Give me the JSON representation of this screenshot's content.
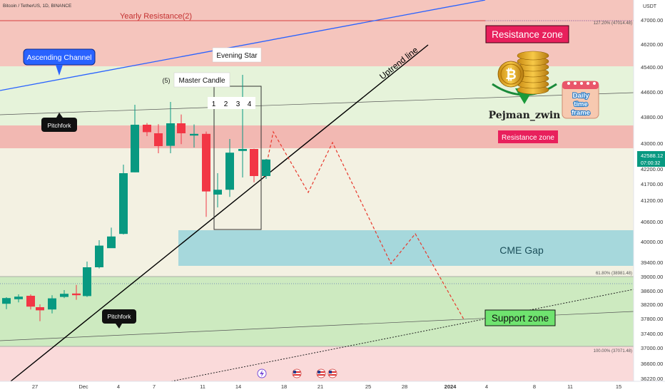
{
  "header": {
    "symbol": "Bitcoin / TetherUS, 1D, BINANCE",
    "currency": "USDT"
  },
  "colors": {
    "up": "#089981",
    "down": "#f23645",
    "accent": "#2962ff"
  },
  "price_axis": {
    "ticks": [
      "47000.00",
      "46200.00",
      "45400.00",
      "44600.00",
      "43800.00",
      "43000.00",
      "42200.00",
      "41700.00",
      "41200.00",
      "40600.00",
      "40000.00",
      "39400.00",
      "39000.00",
      "38600.00",
      "38200.00",
      "37800.00",
      "37400.00",
      "37000.00",
      "36600.00",
      "36220.00"
    ],
    "current_price": "42588.12",
    "countdown": "07:00:32"
  },
  "time_axis": {
    "ticks": [
      "27",
      "Dec",
      "4",
      "7",
      "11",
      "14",
      "18",
      "21",
      "25",
      "28",
      "2024",
      "4",
      "8",
      "11",
      "15"
    ]
  },
  "fib_levels": {
    "top": "127.20% (47014.48)",
    "mid": "61.80% (38981.48)",
    "bottom": "100.00% (37071.48)"
  },
  "labels": {
    "yearly_resistance": "Yearly Resistance(2)",
    "ascending_channel": "Ascending Channel",
    "evening_star": "Evening Star",
    "master_candle": "Master Candle",
    "wave_5": "(5)",
    "candle_numbers": [
      "1",
      "2",
      "3",
      "4"
    ],
    "pitchfork_top": "Pitchfork",
    "pitchfork_bottom": "Pitchfork",
    "uptrend_line": "Uptrend line",
    "resistance_zone_top": "Resistance zone",
    "resistance_zone_mid": "Resistance zone",
    "cme_gap": "CME Gap",
    "support_zone": "Support zone",
    "author": "Pejman_zwin",
    "calendar_text": [
      "Daily",
      "time",
      "frame"
    ]
  },
  "icons": {
    "coin": "bitcoin-coin-stack-icon",
    "calendar": "calendar-icon",
    "events": [
      "lightning-event-icon",
      "us-flag-event-icon",
      "us-flag-event-icon",
      "us-flag-event-icon"
    ]
  },
  "candles": [
    {
      "x": 3,
      "o": 37520,
      "h": 37750,
      "l": 37330,
      "c": 37720
    },
    {
      "x": 20,
      "o": 37680,
      "h": 37850,
      "l": 37570,
      "c": 37770
    },
    {
      "x": 37,
      "o": 37800,
      "h": 37850,
      "l": 37320,
      "c": 37420
    },
    {
      "x": 50,
      "o": 37400,
      "h": 37500,
      "l": 36910,
      "c": 37290
    },
    {
      "x": 67,
      "o": 37320,
      "h": 37820,
      "l": 37180,
      "c": 37710
    },
    {
      "x": 84,
      "o": 37760,
      "h": 38000,
      "l": 37720,
      "c": 37870
    },
    {
      "x": 101,
      "o": 37880,
      "h": 38180,
      "l": 37660,
      "c": 37820
    },
    {
      "x": 116,
      "o": 37790,
      "h": 39000,
      "l": 37760,
      "c": 38800
    },
    {
      "x": 133,
      "o": 38800,
      "h": 39750,
      "l": 38760,
      "c": 39560
    },
    {
      "x": 150,
      "o": 39470,
      "h": 40190,
      "l": 39480,
      "c": 39880
    },
    {
      "x": 167,
      "o": 39970,
      "h": 42400,
      "l": 39950,
      "c": 42100
    },
    {
      "x": 183,
      "o": 42130,
      "h": 44500,
      "l": 42130,
      "c": 43800
    },
    {
      "x": 200,
      "o": 43800,
      "h": 43860,
      "l": 43400,
      "c": 43540
    },
    {
      "x": 216,
      "o": 43500,
      "h": 43820,
      "l": 42800,
      "c": 43050
    },
    {
      "x": 233,
      "o": 43060,
      "h": 44600,
      "l": 42800,
      "c": 43850
    },
    {
      "x": 248,
      "o": 43850,
      "h": 44160,
      "l": 43120,
      "c": 43500
    },
    {
      "x": 266,
      "o": 43420,
      "h": 43810,
      "l": 43000,
      "c": 43480
    },
    {
      "x": 283,
      "o": 43480,
      "h": 43560,
      "l": 40570,
      "c": 41460
    },
    {
      "x": 299,
      "o": 41350,
      "h": 42100,
      "l": 40900,
      "c": 41520
    },
    {
      "x": 316,
      "o": 41520,
      "h": 43300,
      "l": 41270,
      "c": 42820
    },
    {
      "x": 334,
      "o": 42880,
      "h": 45550,
      "l": 41950,
      "c": 42950
    },
    {
      "x": 350,
      "o": 42950,
      "h": 42960,
      "l": 41780,
      "c": 42000
    },
    {
      "x": 367,
      "o": 42000,
      "h": 42600,
      "l": 41900,
      "c": 42580
    }
  ]
}
